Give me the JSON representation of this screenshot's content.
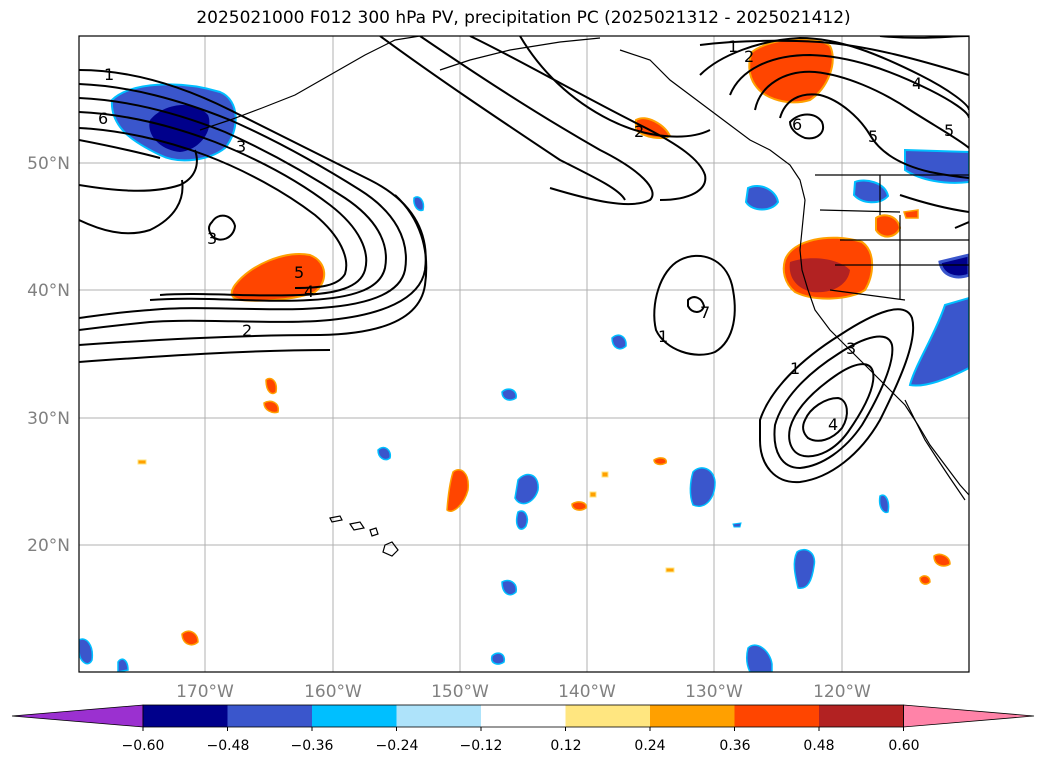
{
  "title": "2025021000 F012 300 hPa PV, precipitation PC (2025021312 - 2025021412)",
  "map": {
    "lat_labels": [
      "50°N",
      "40°N",
      "30°N",
      "20°N"
    ],
    "lon_labels": [
      "170°W",
      "160°W",
      "150°W",
      "140°W",
      "130°W",
      "120°W"
    ],
    "contour_labels": [
      "1",
      "6",
      "3",
      "3",
      "5",
      "4",
      "2",
      "2",
      "1",
      "2",
      "6",
      "4",
      "5",
      "5",
      "1",
      "1",
      "3",
      "4",
      "7"
    ]
  },
  "colorbar": {
    "tick_labels": [
      "−0.60",
      "−0.48",
      "−0.36",
      "−0.24",
      "−0.12",
      "0.12",
      "0.24",
      "0.36",
      "0.48",
      "0.60"
    ],
    "colors": [
      "#9b30d0",
      "#00008b",
      "#3a56cc",
      "#00bfff",
      "#aee3fa",
      "#ffffff",
      "#ffe680",
      "#ffa000",
      "#ff4500",
      "#b22222",
      "#ff83a8"
    ]
  }
}
